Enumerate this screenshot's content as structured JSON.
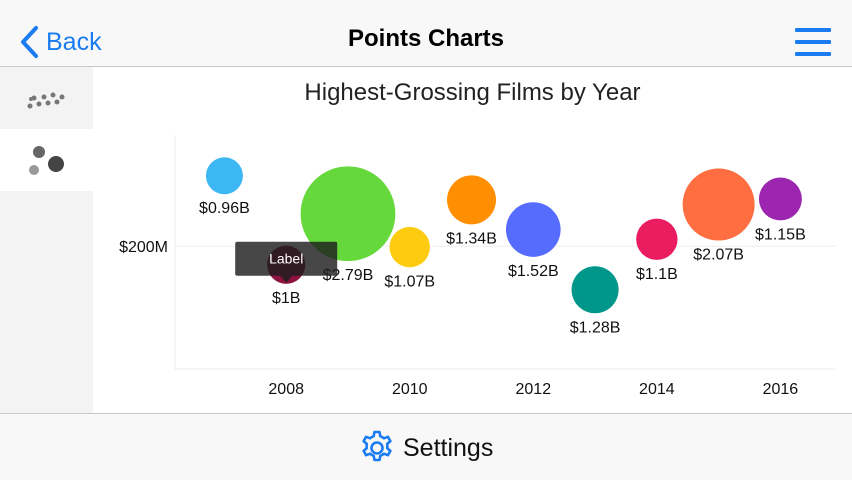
{
  "nav": {
    "back_label": "Back",
    "title": "Points Charts"
  },
  "footer": {
    "settings_label": "Settings"
  },
  "colors": {
    "accent": "#1a7cf0"
  },
  "icons": {
    "back": "chevron-left-icon",
    "menu": "hamburger-menu-icon",
    "settings": "gear-icon",
    "tab_1": "scatter-points-icon",
    "tab_2": "bubble-points-icon"
  },
  "tooltip": {
    "label": "Label"
  },
  "chart_data": {
    "type": "bubble",
    "title": "Highest-Grossing Films by Year",
    "xlabel": "",
    "ylabel": "",
    "x_ticks": [
      "2008",
      "2010",
      "2012",
      "2014",
      "2016"
    ],
    "y_ticks": [
      {
        "value": 200,
        "label": "$200M"
      }
    ],
    "xlim": [
      2006.2,
      2016.9
    ],
    "ylim": [
      -65,
      440
    ],
    "grid": true,
    "points": [
      {
        "x": 2007,
        "y": 352,
        "gross_billion": 0.96,
        "label": "$0.96B",
        "color": "#3cb7f3"
      },
      {
        "x": 2008,
        "y": 160,
        "gross_billion": 1.0,
        "label": "$1B",
        "color": "#8c1240"
      },
      {
        "x": 2009,
        "y": 270,
        "gross_billion": 2.79,
        "label": "$2.79B",
        "color": "#65d93b"
      },
      {
        "x": 2010,
        "y": 198,
        "gross_billion": 1.07,
        "label": "$1.07B",
        "color": "#fdcb0f"
      },
      {
        "x": 2011,
        "y": 300,
        "gross_billion": 1.34,
        "label": "$1.34B",
        "color": "#ff8f00"
      },
      {
        "x": 2012,
        "y": 236,
        "gross_billion": 1.52,
        "label": "$1.52B",
        "color": "#566cfe"
      },
      {
        "x": 2013,
        "y": 106,
        "gross_billion": 1.28,
        "label": "$1.28B",
        "color": "#00968a"
      },
      {
        "x": 2014,
        "y": 215,
        "gross_billion": 1.1,
        "label": "$1.1B",
        "color": "#e91d60"
      },
      {
        "x": 2015,
        "y": 290,
        "gross_billion": 2.07,
        "label": "$2.07B",
        "color": "#ff6e40"
      },
      {
        "x": 2016,
        "y": 302,
        "gross_billion": 1.15,
        "label": "$1.15B",
        "color": "#9c26b0"
      }
    ]
  }
}
